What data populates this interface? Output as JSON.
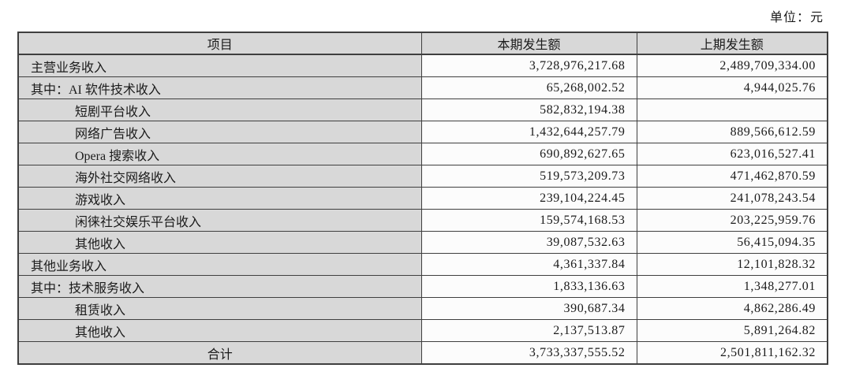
{
  "unit_label": "单位：元",
  "colors": {
    "cell_gray": "#d8d8d8",
    "cell_white": "#fcfcfc",
    "border": "#3f3f3f",
    "text": "#1b1b1b"
  },
  "table": {
    "headers": [
      "项目",
      "本期发生额",
      "上期发生额"
    ],
    "rows": [
      {
        "label": "主营业务收入",
        "indent": 0,
        "center": false,
        "current": "3,728,976,217.68",
        "prior": "2,489,709,334.00"
      },
      {
        "label": "其中：AI 软件技术收入",
        "indent": 0,
        "center": false,
        "current": "65,268,002.52",
        "prior": "4,944,025.76"
      },
      {
        "label": "短剧平台收入",
        "indent": 1,
        "center": false,
        "current": "582,832,194.38",
        "prior": ""
      },
      {
        "label": "网络广告收入",
        "indent": 1,
        "center": false,
        "current": "1,432,644,257.79",
        "prior": "889,566,612.59"
      },
      {
        "label": "Opera 搜索收入",
        "indent": 1,
        "center": false,
        "current": "690,892,627.65",
        "prior": "623,016,527.41"
      },
      {
        "label": "海外社交网络收入",
        "indent": 1,
        "center": false,
        "current": "519,573,209.73",
        "prior": "471,462,870.59"
      },
      {
        "label": "游戏收入",
        "indent": 1,
        "center": false,
        "current": "239,104,224.45",
        "prior": "241,078,243.54"
      },
      {
        "label": "闲徕社交娱乐平台收入",
        "indent": 1,
        "center": false,
        "current": "159,574,168.53",
        "prior": "203,225,959.76"
      },
      {
        "label": "其他收入",
        "indent": 1,
        "center": false,
        "current": "39,087,532.63",
        "prior": "56,415,094.35"
      },
      {
        "label": "其他业务收入",
        "indent": 0,
        "center": false,
        "current": "4,361,337.84",
        "prior": "12,101,828.32"
      },
      {
        "label": "其中：技术服务收入",
        "indent": 0,
        "center": false,
        "current": "1,833,136.63",
        "prior": "1,348,277.01"
      },
      {
        "label": "租赁收入",
        "indent": 1,
        "center": false,
        "current": "390,687.34",
        "prior": "4,862,286.49"
      },
      {
        "label": "其他收入",
        "indent": 1,
        "center": false,
        "current": "2,137,513.87",
        "prior": "5,891,264.82"
      },
      {
        "label": "合计",
        "indent": 0,
        "center": true,
        "current": "3,733,337,555.52",
        "prior": "2,501,811,162.32"
      }
    ]
  }
}
